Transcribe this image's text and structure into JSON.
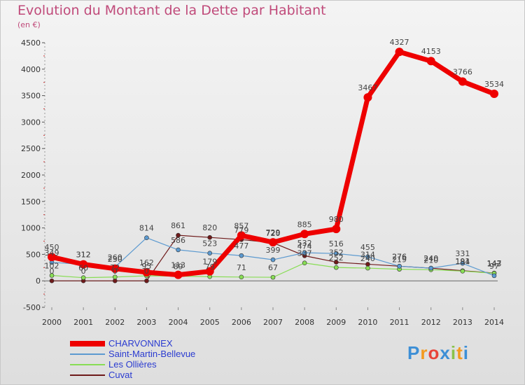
{
  "chart_data": {
    "type": "line",
    "title": "Evolution du Montant de la Dette par Habitant",
    "subtitle": "(en €)",
    "xlabel": "",
    "ylabel": "",
    "categories": [
      "2000",
      "2001",
      "2002",
      "2003",
      "2004",
      "2005",
      "2006",
      "2007",
      "2008",
      "2009",
      "2010",
      "2011",
      "2012",
      "2013",
      "2014"
    ],
    "ylim": [
      -500,
      4500
    ],
    "yticks": [
      -500,
      0,
      500,
      1000,
      1500,
      2000,
      2500,
      3000,
      3500,
      4000,
      4500
    ],
    "grid": false,
    "legend": "bottom-left",
    "series": [
      {
        "name": "CHARVONNEX",
        "color": "#ee0000",
        "values": [
          450,
          312,
          230,
          162,
          113,
          179,
          857,
          729,
          885,
          980,
          3467,
          4327,
          4153,
          3766,
          3534
        ]
      },
      {
        "name": "Saint-Martin-Bellevue",
        "color": "#5c9ad0",
        "values": [
          349,
          312,
          260,
          814,
          586,
          523,
          477,
          399,
          532,
          516,
          455,
          276,
          240,
          331,
          97
        ]
      },
      {
        "name": "Les Ollières",
        "color": "#88dd55",
        "values": [
          102,
          60,
          72,
          95,
          89,
          79,
          71,
          67,
          337,
          252,
          240,
          219,
          210,
          184,
          143
        ]
      },
      {
        "name": "Cuvat",
        "color": "#6e1a1a",
        "values": [
          0,
          0,
          0,
          0,
          861,
          820,
          779,
          720,
          474,
          352,
          314,
          276,
          240,
          191,
          147
        ]
      }
    ]
  },
  "brand": {
    "letters": [
      "P",
      "r",
      "o",
      "x",
      "i",
      "t",
      "i"
    ],
    "colors": [
      "#3d8fd6",
      "#f39a1e",
      "#e8443a",
      "#3d8fd6",
      "#8ac34a",
      "#f39a1e",
      "#3d8fd6"
    ]
  }
}
